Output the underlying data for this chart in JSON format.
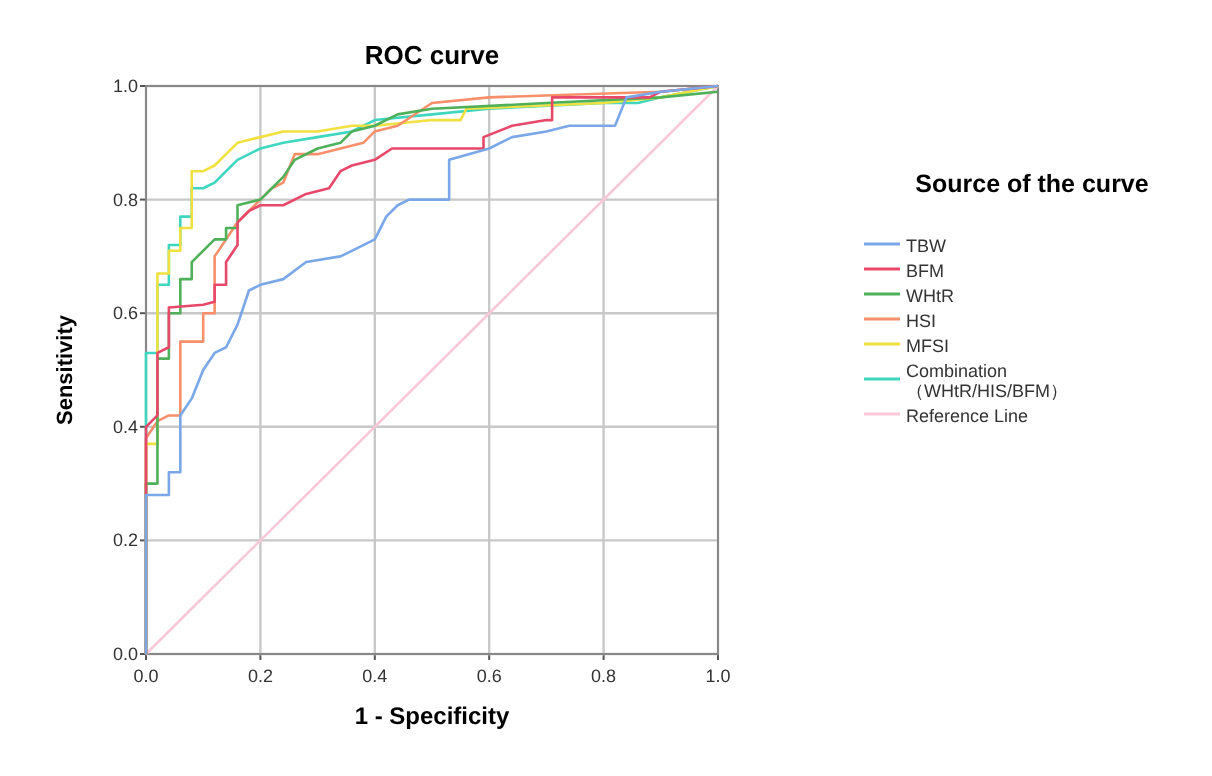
{
  "chart_data": {
    "type": "line",
    "title": "ROC curve",
    "xlabel": "1 - Specificity",
    "ylabel": "Sensitivity",
    "legend_title": "Source of the curve",
    "legend": "right",
    "grid": true,
    "line_style": "solid",
    "xlim": [
      0,
      1
    ],
    "ylim": [
      0,
      1
    ],
    "xticks": [
      {
        "value": 0,
        "label": "0.0"
      },
      {
        "value": 0.2,
        "label": "0.2"
      },
      {
        "value": 0.4,
        "label": "0.4"
      },
      {
        "value": 0.6,
        "label": "0.6"
      },
      {
        "value": 0.8,
        "label": "0.8"
      },
      {
        "value": 1,
        "label": "1.0"
      }
    ],
    "yticks": [
      {
        "value": 0,
        "label": "0.0"
      },
      {
        "value": 0.2,
        "label": "0.2"
      },
      {
        "value": 0.4,
        "label": "0.4"
      },
      {
        "value": 0.6,
        "label": "0.6"
      },
      {
        "value": 0.8,
        "label": "0.8"
      },
      {
        "value": 1,
        "label": "1.0"
      }
    ],
    "series": [
      {
        "name": "TBW",
        "color": "#7aa7e8",
        "x": [
          0,
          0,
          0.04,
          0.04,
          0.06,
          0.06,
          0.08,
          0.1,
          0.12,
          0.14,
          0.16,
          0.18,
          0.2,
          0.24,
          0.28,
          0.34,
          0.38,
          0.4,
          0.42,
          0.44,
          0.46,
          0.5,
          0.53,
          0.53,
          0.6,
          0.64,
          0.7,
          0.74,
          0.82,
          0.84,
          0.9,
          1
        ],
        "values": [
          0,
          0.28,
          0.28,
          0.32,
          0.32,
          0.42,
          0.45,
          0.5,
          0.53,
          0.54,
          0.58,
          0.64,
          0.65,
          0.66,
          0.69,
          0.7,
          0.72,
          0.73,
          0.77,
          0.79,
          0.8,
          0.8,
          0.8,
          0.87,
          0.89,
          0.91,
          0.92,
          0.93,
          0.93,
          0.98,
          0.99,
          1
        ]
      },
      {
        "name": "BFM",
        "color": "#e8486a",
        "x": [
          0,
          0,
          0.02,
          0.02,
          0.04,
          0.04,
          0.1,
          0.12,
          0.12,
          0.14,
          0.14,
          0.16,
          0.16,
          0.18,
          0.2,
          0.24,
          0.28,
          0.32,
          0.34,
          0.36,
          0.4,
          0.43,
          0.59,
          0.59,
          0.64,
          0.7,
          0.71,
          0.71,
          0.88,
          0.9,
          1
        ],
        "values": [
          0,
          0.4,
          0.42,
          0.53,
          0.54,
          0.61,
          0.615,
          0.62,
          0.65,
          0.65,
          0.69,
          0.72,
          0.76,
          0.78,
          0.79,
          0.79,
          0.81,
          0.82,
          0.85,
          0.86,
          0.87,
          0.89,
          0.89,
          0.91,
          0.93,
          0.94,
          0.94,
          0.98,
          0.98,
          0.99,
          1
        ]
      },
      {
        "name": "WHtR",
        "color": "#4fb05a",
        "x": [
          0,
          0,
          0.02,
          0.02,
          0.04,
          0.04,
          0.06,
          0.06,
          0.08,
          0.08,
          0.12,
          0.14,
          0.14,
          0.16,
          0.16,
          0.2,
          0.24,
          0.26,
          0.3,
          0.34,
          0.36,
          0.4,
          0.44,
          0.5,
          0.7,
          0.9,
          1
        ],
        "values": [
          0,
          0.3,
          0.3,
          0.52,
          0.52,
          0.6,
          0.6,
          0.66,
          0.66,
          0.69,
          0.73,
          0.73,
          0.75,
          0.75,
          0.79,
          0.8,
          0.84,
          0.87,
          0.89,
          0.9,
          0.92,
          0.93,
          0.95,
          0.96,
          0.97,
          0.98,
          0.99
        ]
      },
      {
        "name": "HSI",
        "color": "#f7906a",
        "x": [
          0,
          0,
          0.02,
          0.04,
          0.06,
          0.06,
          0.1,
          0.1,
          0.12,
          0.12,
          0.14,
          0.16,
          0.18,
          0.2,
          0.22,
          0.24,
          0.26,
          0.3,
          0.34,
          0.38,
          0.4,
          0.44,
          0.5,
          0.6,
          0.9,
          1
        ],
        "values": [
          0,
          0.38,
          0.41,
          0.42,
          0.42,
          0.55,
          0.55,
          0.6,
          0.6,
          0.7,
          0.73,
          0.76,
          0.78,
          0.8,
          0.82,
          0.83,
          0.88,
          0.88,
          0.89,
          0.9,
          0.92,
          0.93,
          0.97,
          0.98,
          0.99,
          1
        ]
      },
      {
        "name": "MFSI",
        "color": "#f0e040",
        "x": [
          0,
          0,
          0.02,
          0.02,
          0.04,
          0.04,
          0.06,
          0.06,
          0.08,
          0.08,
          0.1,
          0.12,
          0.14,
          0.16,
          0.2,
          0.24,
          0.3,
          0.36,
          0.4,
          0.5,
          0.55,
          0.56,
          0.8,
          0.9,
          1
        ],
        "values": [
          0,
          0.37,
          0.37,
          0.67,
          0.67,
          0.71,
          0.71,
          0.75,
          0.75,
          0.85,
          0.85,
          0.86,
          0.88,
          0.9,
          0.91,
          0.92,
          0.92,
          0.93,
          0.93,
          0.94,
          0.94,
          0.96,
          0.97,
          0.98,
          1
        ]
      },
      {
        "name": "Combination（WHtR/HIS/BFM）",
        "color": "#3fd6c0",
        "x": [
          0,
          0,
          0.02,
          0.02,
          0.04,
          0.04,
          0.06,
          0.06,
          0.08,
          0.08,
          0.1,
          0.12,
          0.14,
          0.16,
          0.2,
          0.24,
          0.3,
          0.36,
          0.4,
          0.5,
          0.6,
          0.8,
          0.86,
          0.9,
          1
        ],
        "values": [
          0,
          0.53,
          0.53,
          0.65,
          0.65,
          0.72,
          0.72,
          0.77,
          0.77,
          0.82,
          0.82,
          0.83,
          0.85,
          0.87,
          0.89,
          0.9,
          0.91,
          0.92,
          0.94,
          0.95,
          0.96,
          0.97,
          0.97,
          0.98,
          1
        ]
      },
      {
        "name": "Reference Line",
        "color": "#f9c8d8",
        "x": [
          0,
          1
        ],
        "values": [
          0,
          1
        ]
      }
    ]
  }
}
